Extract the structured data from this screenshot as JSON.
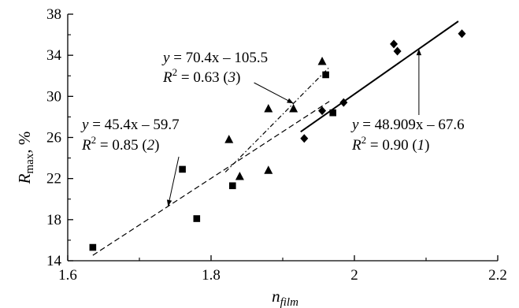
{
  "chart_data": {
    "type": "scatter",
    "title": "",
    "xlabel": {
      "main": "n",
      "sub": "film"
    },
    "ylabel": {
      "main": "R",
      "sub": "max",
      "unit": ", %"
    },
    "xlim": [
      1.6,
      2.2
    ],
    "ylim": [
      14,
      38
    ],
    "xticks": [
      1.6,
      1.8,
      2.0,
      2.2
    ],
    "xtick_labels": [
      "1.6",
      "1.8",
      "2",
      "2.2"
    ],
    "yticks": [
      14,
      18,
      22,
      26,
      30,
      34,
      38
    ],
    "ytick_labels": [
      "14",
      "18",
      "22",
      "26",
      "30",
      "34",
      "38"
    ],
    "grid": false,
    "series": [
      {
        "marker": "diamond",
        "points": [
          [
            1.93,
            25.9
          ],
          [
            1.955,
            28.6
          ],
          [
            1.985,
            29.4
          ],
          [
            2.055,
            35.1
          ],
          [
            2.06,
            34.4
          ],
          [
            2.15,
            36.1
          ]
        ],
        "fit": {
          "slope": 48.909,
          "intercept": -67.6,
          "x_range": [
            1.925,
            2.145
          ],
          "style": "solid"
        }
      },
      {
        "marker": "square",
        "points": [
          [
            1.635,
            15.3
          ],
          [
            1.76,
            22.9
          ],
          [
            1.78,
            18.1
          ],
          [
            1.83,
            21.3
          ],
          [
            1.96,
            32.1
          ],
          [
            1.97,
            28.4
          ]
        ],
        "fit": {
          "slope": 45.4,
          "intercept": -59.7,
          "x_range": [
            1.635,
            1.965
          ],
          "style": "dashed"
        }
      },
      {
        "marker": "triangle",
        "points": [
          [
            1.825,
            25.8
          ],
          [
            1.84,
            22.2
          ],
          [
            1.88,
            28.8
          ],
          [
            1.88,
            22.8
          ],
          [
            1.915,
            28.8
          ],
          [
            1.955,
            33.4
          ]
        ],
        "fit": {
          "slope": 70.4,
          "intercept": -105.5,
          "x_range": [
            1.82,
            1.965
          ],
          "style": "dashdot"
        }
      }
    ],
    "annotations": [
      {
        "id": "eq1",
        "eq": {
          "pre": "y",
          "rest": " = 48.909x – 67.6"
        },
        "r2": {
          "val": " = 0.90 (",
          "num": "1",
          "close": ")"
        }
      },
      {
        "id": "eq2",
        "eq": {
          "pre": "y",
          "rest": " = 45.4x – 59.7"
        },
        "r2": {
          "val": " = 0.85 (",
          "num": "2",
          "close": ")"
        }
      },
      {
        "id": "eq3",
        "eq": {
          "pre": "y",
          "rest": " = 70.4x – 105.5"
        },
        "r2": {
          "val": " = 0.63 (",
          "num": "3",
          "close": ")"
        }
      }
    ],
    "r2_symbol": {
      "main": "R",
      "sup": "2"
    }
  }
}
